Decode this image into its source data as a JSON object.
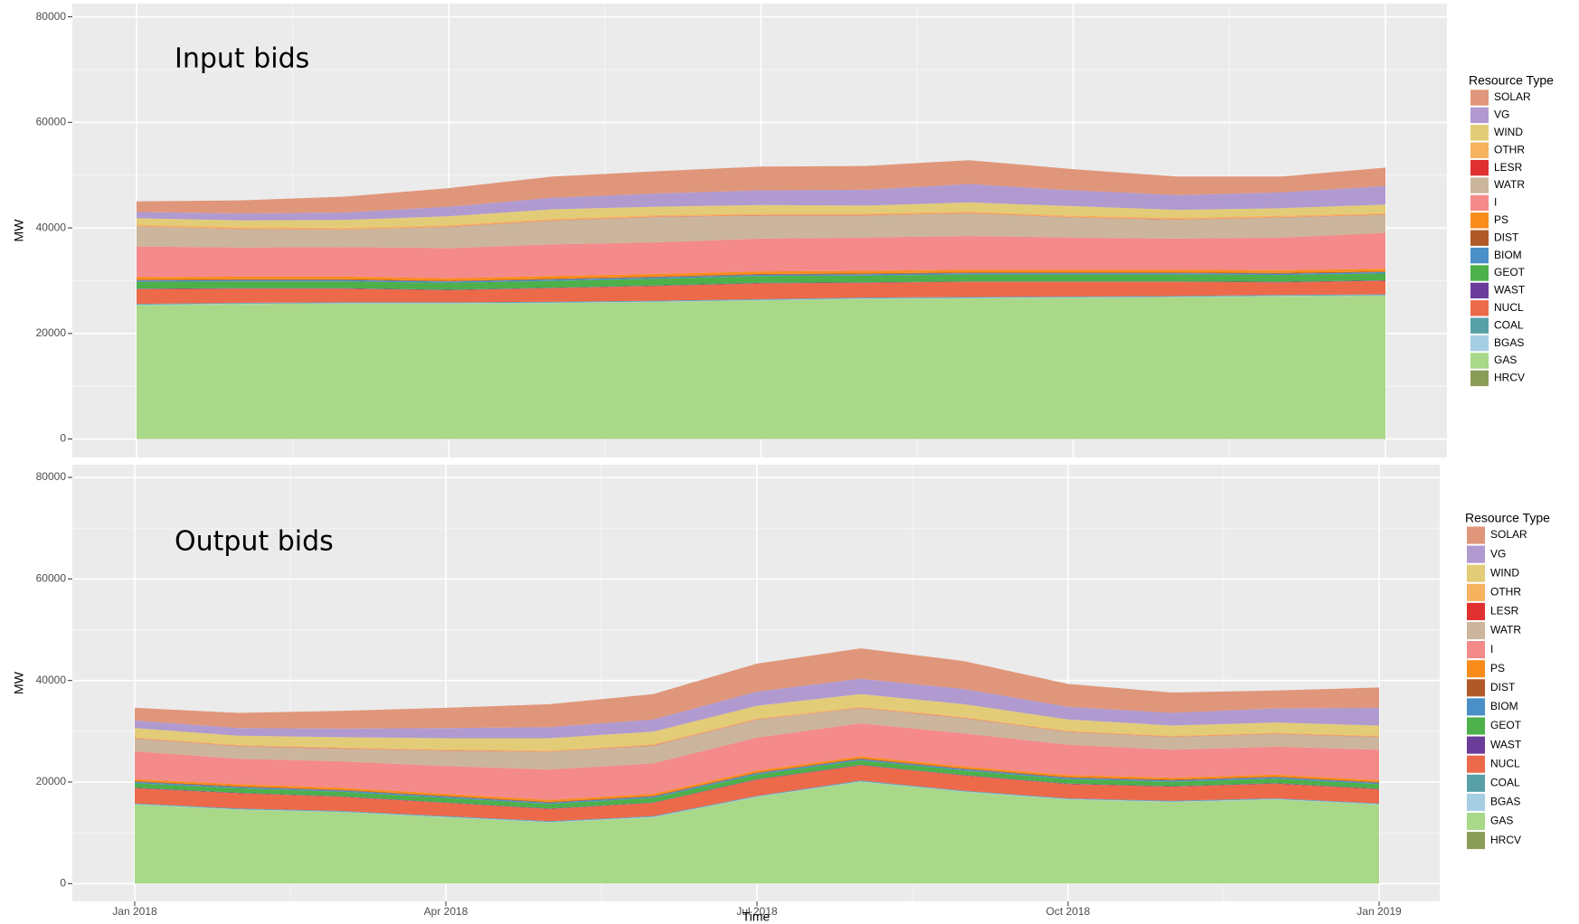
{
  "chart_data": [
    {
      "type": "area",
      "stacked": true,
      "title": "Input bids",
      "ylabel": "MW",
      "legend_title": "Resource Type",
      "grid": true,
      "x": [
        "2018-01",
        "2018-02",
        "2018-03",
        "2018-04",
        "2018-05",
        "2018-06",
        "2018-07",
        "2018-08",
        "2018-09",
        "2018-10",
        "2018-11",
        "2018-12",
        "2019-01"
      ],
      "xlim": [
        "2018-01",
        "2019-01"
      ],
      "xticks": [
        "2018-01",
        "2018-04",
        "2018-07",
        "2018-10",
        "2019-01"
      ],
      "ylim": [
        -3500,
        82500
      ],
      "yticks": [
        0,
        20000,
        40000,
        60000,
        80000
      ],
      "series": [
        {
          "name": "SOLAR",
          "color": "#e0967a",
          "values": [
            2000,
            2500,
            3000,
            3500,
            4000,
            4200,
            4500,
            4500,
            4500,
            4000,
            3500,
            3000,
            3500
          ]
        },
        {
          "name": "VG",
          "color": "#b09ad0",
          "values": [
            1200,
            1300,
            1400,
            1800,
            2200,
            2500,
            2800,
            3000,
            3500,
            3000,
            2800,
            3000,
            3500
          ]
        },
        {
          "name": "WIND",
          "color": "#e2cc78",
          "values": [
            1200,
            1300,
            1500,
            1700,
            1800,
            1600,
            1600,
            1500,
            1700,
            1800,
            1500,
            1400,
            1600
          ]
        },
        {
          "name": "OTHR",
          "color": "#f6b25e",
          "values": [
            300,
            300,
            300,
            300,
            300,
            300,
            300,
            300,
            300,
            300,
            300,
            300,
            300
          ]
        },
        {
          "name": "LESR",
          "color": "#e03030",
          "values": [
            50,
            50,
            50,
            50,
            50,
            50,
            50,
            50,
            50,
            50,
            50,
            50,
            50
          ]
        },
        {
          "name": "WATR",
          "color": "#cbb59c",
          "values": [
            3800,
            3500,
            3300,
            4000,
            4500,
            4800,
            4400,
            4200,
            4300,
            3800,
            3600,
            3800,
            3400
          ]
        },
        {
          "name": "I",
          "color": "#f48a8a",
          "values": [
            5800,
            5500,
            5600,
            5700,
            6000,
            6000,
            6200,
            6300,
            6400,
            6100,
            5900,
            6200,
            6800
          ]
        },
        {
          "name": "PS",
          "color": "#fa8c1c",
          "values": [
            500,
            500,
            500,
            500,
            500,
            500,
            500,
            500,
            500,
            500,
            500,
            500,
            500
          ]
        },
        {
          "name": "DIST",
          "color": "#b05a2a",
          "values": [
            150,
            150,
            150,
            150,
            150,
            150,
            150,
            150,
            150,
            150,
            150,
            150,
            150
          ]
        },
        {
          "name": "BIOM",
          "color": "#4a8fc8",
          "values": [
            250,
            250,
            250,
            250,
            250,
            250,
            250,
            250,
            250,
            250,
            250,
            250,
            250
          ]
        },
        {
          "name": "GEOT",
          "color": "#4db04a",
          "values": [
            1300,
            1300,
            1300,
            1300,
            1300,
            1300,
            1300,
            1300,
            1300,
            1300,
            1300,
            1300,
            1300
          ]
        },
        {
          "name": "WAST",
          "color": "#6a3d9a",
          "values": [
            80,
            80,
            80,
            80,
            80,
            80,
            80,
            80,
            80,
            80,
            80,
            80,
            80
          ]
        },
        {
          "name": "NUCL",
          "color": "#ec6a4a",
          "values": [
            2800,
            2700,
            2600,
            2300,
            2600,
            2800,
            3000,
            2800,
            2900,
            2800,
            2700,
            2400,
            2600
          ]
        },
        {
          "name": "COAL",
          "color": "#58a0a8",
          "values": [
            150,
            150,
            150,
            150,
            150,
            150,
            150,
            150,
            150,
            150,
            150,
            150,
            150
          ]
        },
        {
          "name": "BGAS",
          "color": "#a6cee3",
          "values": [
            100,
            100,
            100,
            100,
            100,
            100,
            100,
            100,
            100,
            100,
            100,
            100,
            100
          ]
        },
        {
          "name": "GAS",
          "color": "#a8d888",
          "values": [
            25300,
            25500,
            25600,
            25600,
            25700,
            25900,
            26200,
            26500,
            26600,
            26700,
            26800,
            27000,
            27100
          ]
        },
        {
          "name": "HRCV",
          "color": "#8a9c58",
          "values": [
            50,
            50,
            50,
            50,
            50,
            50,
            50,
            50,
            50,
            50,
            50,
            50,
            50
          ]
        }
      ]
    },
    {
      "type": "area",
      "stacked": true,
      "title": "Output bids",
      "ylabel": "MW",
      "xlabel": "Time",
      "legend_title": "Resource Type",
      "grid": true,
      "x": [
        "2018-01",
        "2018-02",
        "2018-03",
        "2018-04",
        "2018-05",
        "2018-06",
        "2018-07",
        "2018-08",
        "2018-09",
        "2018-10",
        "2018-11",
        "2018-12",
        "2019-01"
      ],
      "xlim": [
        "2018-01",
        "2019-01"
      ],
      "xticks": [
        {
          "value": "2018-01",
          "label": "Jan 2018"
        },
        {
          "value": "2018-04",
          "label": "Apr 2018"
        },
        {
          "value": "2018-07",
          "label": "Jul 2018"
        },
        {
          "value": "2018-10",
          "label": "Oct 2018"
        },
        {
          "value": "2019-01",
          "label": "Jan 2019"
        }
      ],
      "ylim": [
        -3500,
        82500
      ],
      "yticks": [
        0,
        20000,
        40000,
        60000,
        80000
      ],
      "series": [
        {
          "name": "SOLAR",
          "color": "#e0967a",
          "values": [
            2500,
            3000,
            3500,
            4000,
            4500,
            5000,
            5500,
            6000,
            5500,
            4500,
            4000,
            3500,
            4000
          ]
        },
        {
          "name": "VG",
          "color": "#b09ad0",
          "values": [
            1500,
            1500,
            1700,
            2000,
            2200,
            2400,
            2800,
            3000,
            3000,
            2500,
            2500,
            2800,
            3500
          ]
        },
        {
          "name": "WIND",
          "color": "#e2cc78",
          "values": [
            1800,
            1800,
            2000,
            2200,
            2400,
            2500,
            2500,
            2500,
            2500,
            2200,
            2000,
            2000,
            2000
          ]
        },
        {
          "name": "OTHR",
          "color": "#f6b25e",
          "values": [
            200,
            200,
            200,
            200,
            200,
            200,
            200,
            200,
            200,
            200,
            200,
            200,
            200
          ]
        },
        {
          "name": "LESR",
          "color": "#e03030",
          "values": [
            50,
            50,
            50,
            50,
            50,
            50,
            50,
            50,
            50,
            50,
            50,
            50,
            50
          ]
        },
        {
          "name": "WATR",
          "color": "#cbb59c",
          "values": [
            2500,
            2500,
            2500,
            3000,
            3500,
            3500,
            3500,
            3000,
            3000,
            2500,
            2500,
            2500,
            2500
          ]
        },
        {
          "name": "I",
          "color": "#f48a8a",
          "values": [
            5500,
            5000,
            5200,
            5500,
            6000,
            6000,
            6500,
            6500,
            6500,
            6000,
            5500,
            5500,
            6000
          ]
        },
        {
          "name": "PS",
          "color": "#fa8c1c",
          "values": [
            400,
            400,
            400,
            400,
            400,
            400,
            400,
            400,
            400,
            400,
            400,
            400,
            400
          ]
        },
        {
          "name": "DIST",
          "color": "#b05a2a",
          "values": [
            150,
            150,
            150,
            150,
            150,
            150,
            150,
            150,
            150,
            150,
            150,
            150,
            150
          ]
        },
        {
          "name": "BIOM",
          "color": "#4a8fc8",
          "values": [
            250,
            250,
            250,
            250,
            250,
            250,
            250,
            250,
            250,
            250,
            250,
            250,
            250
          ]
        },
        {
          "name": "GEOT",
          "color": "#4db04a",
          "values": [
            900,
            900,
            900,
            900,
            900,
            900,
            900,
            900,
            900,
            900,
            900,
            900,
            900
          ]
        },
        {
          "name": "WAST",
          "color": "#6a3d9a",
          "values": [
            80,
            80,
            80,
            80,
            80,
            80,
            80,
            80,
            80,
            80,
            80,
            80,
            80
          ]
        },
        {
          "name": "NUCL",
          "color": "#ec6a4a",
          "values": [
            3000,
            3000,
            2800,
            2600,
            2400,
            2600,
            3200,
            3000,
            3000,
            2800,
            2800,
            2900,
            2800
          ]
        },
        {
          "name": "COAL",
          "color": "#58a0a8",
          "values": [
            150,
            150,
            150,
            150,
            150,
            150,
            150,
            150,
            150,
            150,
            150,
            150,
            150
          ]
        },
        {
          "name": "BGAS",
          "color": "#a6cee3",
          "values": [
            100,
            100,
            100,
            100,
            100,
            100,
            100,
            100,
            100,
            100,
            100,
            100,
            100
          ]
        },
        {
          "name": "GAS",
          "color": "#a8d888",
          "values": [
            15500,
            14500,
            14000,
            13000,
            12000,
            13000,
            17000,
            20000,
            18000,
            16500,
            16000,
            16500,
            15500
          ]
        },
        {
          "name": "HRCV",
          "color": "#8a9c58",
          "values": [
            50,
            50,
            50,
            50,
            50,
            50,
            50,
            50,
            50,
            50,
            50,
            50,
            50
          ]
        }
      ]
    }
  ]
}
